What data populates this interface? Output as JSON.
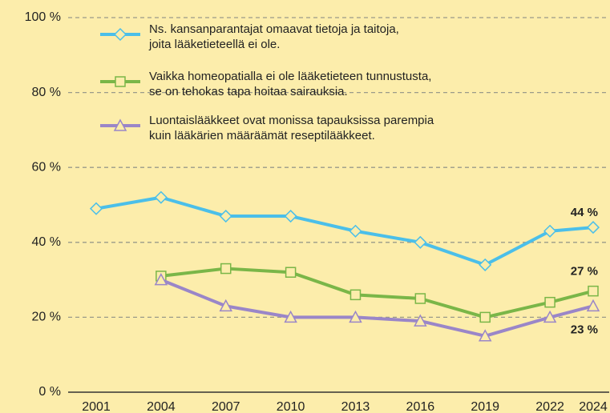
{
  "chart_data": {
    "type": "line",
    "x": [
      2001,
      2004,
      2007,
      2010,
      2013,
      2016,
      2019,
      2022,
      2024
    ],
    "xlim": [
      2001,
      2024
    ],
    "xticks": [
      2001,
      2004,
      2007,
      2010,
      2013,
      2016,
      2019,
      2022,
      2024
    ],
    "ylim": [
      0,
      100
    ],
    "yticks": [
      {
        "value": 0,
        "label": "0 %"
      },
      {
        "value": 20,
        "label": "20 %"
      },
      {
        "value": 40,
        "label": "40 %"
      },
      {
        "value": 60,
        "label": "60 %"
      },
      {
        "value": 80,
        "label": "80 %"
      },
      {
        "value": 100,
        "label": "100 %"
      }
    ],
    "grid": true,
    "legend": "top",
    "series": [
      {
        "name": "Ns. kansanparantajat omaavat tietoja ja taitoja,\njoita lääketieteellä ei ole.",
        "color": "#4bbfe9",
        "marker": "diamond",
        "values": [
          49,
          52,
          47,
          47,
          43,
          40,
          34,
          43,
          44
        ],
        "value_labels": [
          null,
          null,
          null,
          null,
          null,
          null,
          null,
          null,
          "44 %"
        ]
      },
      {
        "name": "Vaikka homeopatialla ei ole lääketieteen tunnustusta,\nse on tehokas tapa hoitaa sairauksia.",
        "color": "#7ab648",
        "marker": "square",
        "values": [
          null,
          31,
          33,
          32,
          26,
          25,
          20,
          24,
          27
        ],
        "value_labels": [
          null,
          null,
          null,
          null,
          null,
          null,
          null,
          null,
          "27 %"
        ]
      },
      {
        "name": "Luontaislääkkeet ovat monissa tapauksissa parempia\nkuin lääkärien määräämät reseptilääkkeet.",
        "color": "#9a86c8",
        "marker": "triangle",
        "values": [
          null,
          30,
          23,
          20,
          20,
          19,
          15,
          20,
          23
        ],
        "value_labels": [
          null,
          null,
          null,
          null,
          null,
          null,
          null,
          null,
          "23 %"
        ]
      }
    ]
  }
}
